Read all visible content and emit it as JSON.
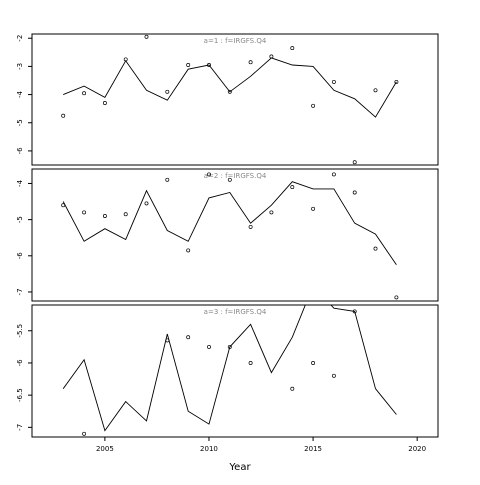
{
  "chart_data": {
    "type": "line",
    "xlabel": "Year",
    "x_ticks": [
      2005,
      2010,
      2015,
      2020
    ],
    "xlim": [
      2001.5,
      2021
    ],
    "panels": [
      {
        "title": "a=1  :  f=IRGFS.Q4",
        "ylim": [
          -6.5,
          -1.85
        ],
        "y_ticks": [
          -2,
          -3,
          -4,
          -5,
          -6
        ],
        "line": {
          "x": [
            2003,
            2004,
            2005,
            2006,
            2007,
            2008,
            2009,
            2010,
            2011,
            2012,
            2013,
            2014,
            2015,
            2016,
            2017,
            2018,
            2019
          ],
          "y": [
            -4.0,
            -3.7,
            -4.1,
            -2.8,
            -3.85,
            -4.2,
            -3.1,
            -2.95,
            -3.9,
            -3.35,
            -2.7,
            -2.95,
            -3.0,
            -3.85,
            -4.15,
            -4.8,
            -3.55
          ]
        },
        "points": {
          "x": [
            2003,
            2004,
            2005,
            2006,
            2007,
            2008,
            2009,
            2010,
            2011,
            2012,
            2013,
            2014,
            2015,
            2016,
            2017,
            2018,
            2019
          ],
          "y": [
            -4.75,
            -3.95,
            -4.3,
            -2.75,
            -1.95,
            -3.9,
            -2.95,
            -2.95,
            -3.9,
            -2.85,
            -2.65,
            -2.35,
            -4.4,
            -3.55,
            -6.4,
            -3.85,
            -3.55
          ]
        }
      },
      {
        "title": "a=2  :  f=IRGFS.Q4",
        "ylim": [
          -7.25,
          -3.6
        ],
        "y_ticks": [
          -4.0,
          -5.0,
          -6.0,
          -7.0
        ],
        "line": {
          "x": [
            2003,
            2004,
            2005,
            2006,
            2007,
            2008,
            2009,
            2010,
            2011,
            2012,
            2013,
            2014,
            2015,
            2016,
            2017,
            2018,
            2019
          ],
          "y": [
            -4.5,
            -5.6,
            -5.25,
            -5.55,
            -4.2,
            -5.3,
            -5.6,
            -4.4,
            -4.25,
            -5.1,
            -4.6,
            -3.95,
            -4.15,
            -4.15,
            -5.1,
            -5.4,
            -6.25
          ]
        },
        "points": {
          "x": [
            2003,
            2004,
            2005,
            2006,
            2007,
            2008,
            2009,
            2010,
            2011,
            2012,
            2013,
            2014,
            2015,
            2016,
            2017,
            2018,
            2019
          ],
          "y": [
            -4.6,
            -4.8,
            -4.9,
            -4.85,
            -4.55,
            -3.9,
            -5.85,
            -3.75,
            -3.9,
            -5.2,
            -4.8,
            -4.1,
            -4.7,
            -3.75,
            -4.25,
            -5.8,
            -7.15
          ]
        }
      },
      {
        "title": "a=3  :  f=IRGFS.Q4",
        "ylim": [
          -7.15,
          -5.1
        ],
        "y_ticks": [
          -5.5,
          -6.0,
          -6.5,
          -7.0
        ],
        "line": {
          "x": [
            2003,
            2004,
            2005,
            2006,
            2007,
            2008,
            2009,
            2010,
            2011,
            2012,
            2013,
            2014,
            2015,
            2016,
            2017,
            2018,
            2019
          ],
          "y": [
            -6.4,
            -5.95,
            -7.05,
            -6.6,
            -6.9,
            -5.55,
            -6.75,
            -6.95,
            -5.75,
            -5.4,
            -6.15,
            -5.6,
            -4.8,
            -5.15,
            -5.2,
            -6.4,
            -6.8
          ]
        },
        "points": {
          "x": [
            2004,
            2008,
            2009,
            2010,
            2011,
            2012,
            2014,
            2015,
            2016,
            2017
          ],
          "y": [
            -7.1,
            -5.65,
            -5.6,
            -5.75,
            -5.75,
            -6.0,
            -6.4,
            -6.0,
            -6.2,
            -5.2
          ]
        }
      }
    ]
  }
}
